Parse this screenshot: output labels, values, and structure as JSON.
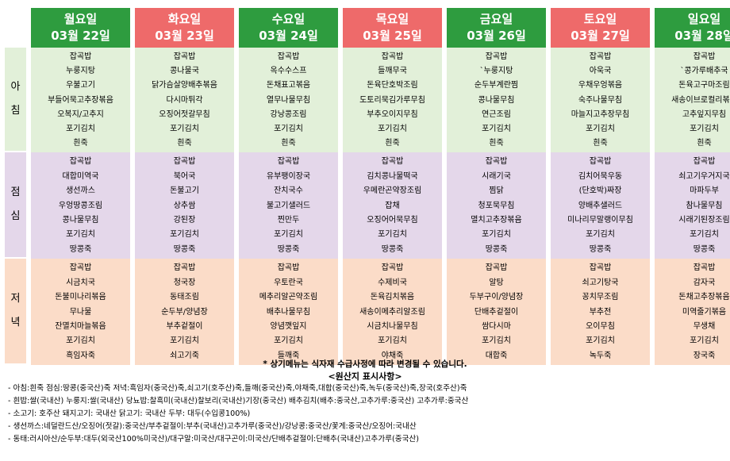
{
  "days": [
    {
      "name": "월요일",
      "date": "03월 22일",
      "header_color": "green",
      "breakfast": [
        "잡곡밥",
        "누룽지탕",
        "우불고기",
        "부들어묵고추장볶음",
        "오복지/고추지",
        "포기김치",
        "흰죽"
      ],
      "lunch": [
        "잡곡밥",
        "대합미역국",
        "생선까스",
        "우엉땅콩조림",
        "콩나물무침",
        "포기김치",
        "땅콩죽"
      ],
      "dinner": [
        "잡곡밥",
        "시금치국",
        "돈불미나리볶음",
        "무나물",
        "잔멸치마늘볶음",
        "포기김치",
        "흑임자죽"
      ]
    },
    {
      "name": "화요일",
      "date": "03월 23일",
      "header_color": "red",
      "breakfast": [
        "잡곡밥",
        "콩나물국",
        "닭가슴살양배추볶음",
        "다시마튀각",
        "오징어젓갈무침",
        "포기김치",
        "흰죽"
      ],
      "lunch": [
        "잡곡밥",
        "북어국",
        "돈불고기",
        "상추쌈",
        "강된장",
        "포기김치",
        "땅콩죽"
      ],
      "dinner": [
        "잡곡밥",
        "청국장",
        "동태조림",
        "순두부/양념장",
        "부추겉절이",
        "포기김치",
        "쇠고기죽"
      ]
    },
    {
      "name": "수요일",
      "date": "03월 24일",
      "header_color": "green",
      "breakfast": [
        "잡곡밥",
        "옥수수스프",
        "돈채표고볶음",
        "열무나물무침",
        "강낭콩조림",
        "포기김치",
        "흰죽"
      ],
      "lunch": [
        "잡곡밥",
        "유부팽이장국",
        "잔치국수",
        "불고기샐러드",
        "찐만두",
        "포기김치",
        "땅콩죽"
      ],
      "dinner": [
        "잡곡밥",
        "우토란국",
        "메추리알곤약조림",
        "배추나물무침",
        "양념깻잎지",
        "포기김치",
        "들깨죽"
      ]
    },
    {
      "name": "목요일",
      "date": "03월 25일",
      "header_color": "red",
      "breakfast": [
        "잡곡밥",
        "들깨무국",
        "돈육단호박조림",
        "도토리묵김가루무침",
        "부추오이지무침",
        "포기김치",
        "흰죽"
      ],
      "lunch": [
        "잡곡밥",
        "김치콩나물떡국",
        "우메란곤약장조림",
        "잡채",
        "오징어어묵무침",
        "포기김치",
        "땅콩죽"
      ],
      "dinner": [
        "잡곡밥",
        "수제비국",
        "돈육김치볶음",
        "새송이메추리알조림",
        "시금치나물무침",
        "포기김치",
        "야채죽"
      ]
    },
    {
      "name": "금요일",
      "date": "03월 26일",
      "header_color": "green",
      "breakfast": [
        "잡곡밥",
        "`누룽지탕",
        "순두부계란찜",
        "콩나물무침",
        "연근조림",
        "포기김치",
        "흰죽"
      ],
      "lunch": [
        "잡곡밥",
        "시래기국",
        "찜닭",
        "청포묵무침",
        "멸치고추장볶음",
        "포기김치",
        "땅콩죽"
      ],
      "dinner": [
        "잡곡밥",
        "알탕",
        "두부구이/양념장",
        "단배추겉절이",
        "쌈다시마",
        "포기김치",
        "대합죽"
      ]
    },
    {
      "name": "토요일",
      "date": "03월 27일",
      "header_color": "red",
      "breakfast": [
        "잡곡밥",
        "아욱국",
        "우채우엉볶음",
        "숙주나물무침",
        "마늘지고추장무침",
        "포기김치",
        "흰죽"
      ],
      "lunch": [
        "잡곡밥",
        "김치어묵우동",
        "(단호박)짜장",
        "양배추샐러드",
        "미나리무말랭이무침",
        "포기김치",
        "땅콩죽"
      ],
      "dinner": [
        "잡곡밥",
        "쇠고기탕국",
        "꽁치무조림",
        "부추전",
        "오이무침",
        "포기김치",
        "녹두죽"
      ]
    },
    {
      "name": "일요일",
      "date": "03월 28일",
      "header_color": "green",
      "breakfast": [
        "잡곡밥",
        "`콩가루배추국",
        "돈육고구마조림",
        "새송이브로컬리볶음",
        "고추잎지무침",
        "포기김치",
        "흰죽"
      ],
      "lunch": [
        "잡곡밥",
        "쇠고기우거지국",
        "마파두부",
        "참나물무침",
        "시래기된장조림",
        "포기김치",
        "땅콩죽"
      ],
      "dinner": [
        "잡곡밥",
        "감자국",
        "돈채고추장볶음",
        "미역줄기볶음",
        "무생채",
        "포기김치",
        "장국죽"
      ]
    }
  ],
  "meal_labels": {
    "breakfast": [
      "아",
      "침"
    ],
    "lunch": [
      "점",
      "심"
    ],
    "dinner": [
      "저",
      "녁"
    ]
  },
  "colors": {
    "green": "#2e9c3f",
    "red": "#ee6a6a",
    "breakfast_bg": "#e2f0d9",
    "lunch_bg": "#e4d7ea",
    "dinner_bg": "#fbdcc8"
  },
  "notice": "* 상기메뉴는 식자재 수급사정에 따라 변경될 수 있습니다.",
  "origin_title": "<원산지 표시사항>",
  "origin_lines": [
    "- 아침:흰죽 점심:땅콩(중국산)죽 저녁:흑임자(중국산)죽,쇠고기(호주산)죽,들깨(중국산)죽,야채죽,대합(중국산)죽,녹두(중국산)죽,장국(호주산)죽",
    "- 흰밥:쌀(국내산) 누룽지:쌀(국내산) 당뇨밥:찰흑미(국내산)찰보리(국내산)기장(중국산) 배추김치(배추:중국산,고추가루:중국산) 고추가루:중국산",
    "- 소고기: 호주산 돼지고기: 국내산 닭고기: 국내산 두부: 대두(수입콩100%)",
    "- 생선까스:네덜란드산/오징어(젓갈):중국산/부추겉절이:부추(국내산)고추가루(중국산)/강낭콩:중국산/꽃게:중국산/오징어:국내산",
    "- 동태:러시아산/순두부:대두(외국산100%미국산)/대구알:미국산/대구곤이:미국산/단배추겉절이:단배추(국내산)고추가루(중국산)"
  ]
}
